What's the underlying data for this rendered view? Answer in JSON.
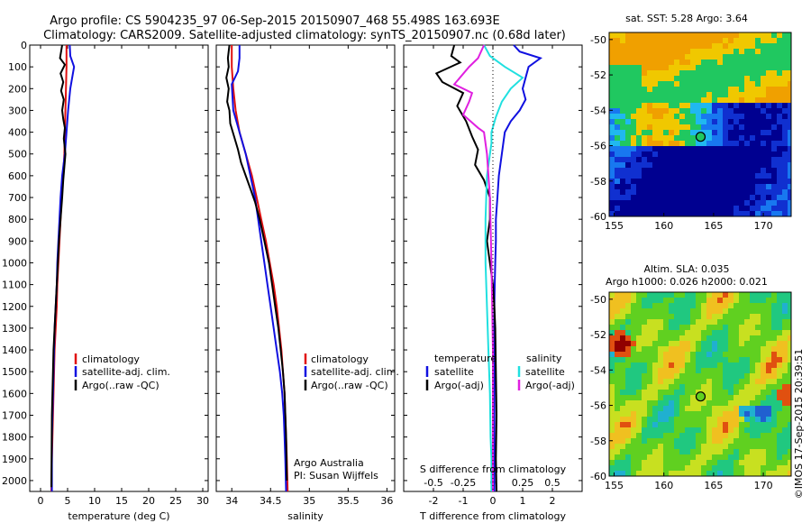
{
  "header": {
    "title_line1": "Argo profile: CS 5904235_97 06-Sep-2015 20150907_468 55.498S 163.693E",
    "title_line2": "Climatology: CARS2009. Satellite-adjusted climatology: synTS_20150907.nc (0.68d later)"
  },
  "colors": {
    "climatology": "#e01010",
    "satellite": "#1010e0",
    "argo": "#000000",
    "sal_satellite": "#20e0e0",
    "sal_argo": "#e020e0"
  },
  "chart_data": [
    {
      "name": "temperature",
      "type": "line",
      "xlabel": "temperature (deg C)",
      "ylabel": "",
      "xlim": [
        -2,
        31
      ],
      "ylim": [
        0,
        2050
      ],
      "y_inverted": true,
      "xticks": [
        0,
        5,
        10,
        15,
        20,
        25,
        30
      ],
      "yticks": [
        0,
        100,
        200,
        300,
        400,
        500,
        600,
        700,
        800,
        900,
        1000,
        1100,
        1200,
        1300,
        1400,
        1500,
        1600,
        1700,
        1800,
        1900,
        2000
      ],
      "legend": [
        "climatology",
        "satellite-adj. clim.",
        "Argo(..raw -QC)"
      ],
      "series": [
        {
          "name": "climatology",
          "color_key": "climatology",
          "x": [
            4.8,
            4.8,
            4.7,
            4.6,
            4.5,
            4.4,
            4.2,
            3.9,
            3.7,
            3.5,
            3.3,
            3.1,
            3.0,
            2.8,
            2.6,
            2.5,
            2.4,
            2.3,
            2.2,
            2.1,
            2.0
          ],
          "y": [
            0,
            100,
            200,
            300,
            400,
            500,
            600,
            700,
            800,
            900,
            1000,
            1100,
            1200,
            1300,
            1400,
            1500,
            1600,
            1700,
            1800,
            1900,
            2050
          ]
        },
        {
          "name": "satellite-adj. clim.",
          "color_key": "satellite",
          "x": [
            5.4,
            5.5,
            6.2,
            5.5,
            5.1,
            4.8,
            4.5,
            4.0,
            3.7,
            3.5,
            3.3,
            3.1,
            3.0,
            2.8,
            2.6,
            2.5,
            2.4,
            2.3,
            2.2,
            2.1,
            2.1
          ],
          "y": [
            0,
            50,
            100,
            200,
            300,
            400,
            500,
            600,
            700,
            800,
            900,
            1000,
            1100,
            1200,
            1300,
            1400,
            1500,
            1600,
            1700,
            1800,
            2050
          ]
        },
        {
          "name": "Argo(..raw -QC)",
          "color_key": "argo",
          "x": [
            4.0,
            3.6,
            4.5,
            3.7,
            4.2,
            3.8,
            4.3,
            4.0,
            4.2,
            4.5,
            4.3,
            4.6,
            4.4,
            4.2,
            4.0,
            3.7,
            3.4,
            3.2,
            3.0,
            2.8,
            2.6,
            2.4,
            2.3,
            2.2,
            2.1,
            2.0
          ],
          "y": [
            0,
            60,
            90,
            130,
            170,
            210,
            250,
            300,
            340,
            380,
            430,
            500,
            560,
            620,
            700,
            800,
            900,
            1000,
            1100,
            1200,
            1300,
            1400,
            1500,
            1600,
            1700,
            2030
          ]
        }
      ]
    },
    {
      "name": "salinity",
      "type": "line",
      "xlabel": "salinity",
      "ylabel": "",
      "xlim": [
        33.8,
        36.1
      ],
      "ylim": [
        0,
        2050
      ],
      "y_inverted": true,
      "xticks": [
        34,
        34.5,
        35,
        35.5,
        36
      ],
      "xtick_labels": [
        "34",
        "34.5",
        "35",
        "35.5",
        "36"
      ],
      "legend": [
        "climatology",
        "satellite-adj. clim.",
        "Argo(..raw -QC)"
      ],
      "annotations": [
        "Argo Australia",
        "PI: Susan Wijffels"
      ],
      "series": [
        {
          "name": "climatology",
          "color_key": "climatology",
          "x": [
            34.0,
            34.0,
            34.02,
            34.05,
            34.1,
            34.18,
            34.26,
            34.32,
            34.38,
            34.44,
            34.49,
            34.54,
            34.58,
            34.61,
            34.64,
            34.66,
            34.68,
            34.69,
            34.7,
            34.71,
            34.72
          ],
          "y": [
            0,
            100,
            200,
            300,
            400,
            500,
            600,
            700,
            800,
            900,
            1000,
            1100,
            1200,
            1300,
            1400,
            1500,
            1600,
            1700,
            1800,
            1900,
            2050
          ]
        },
        {
          "name": "satellite-adj. clim.",
          "color_key": "satellite",
          "x": [
            34.1,
            34.1,
            34.08,
            34.0,
            34.02,
            34.1,
            34.18,
            34.24,
            34.3,
            34.34,
            34.38,
            34.42,
            34.46,
            34.5,
            34.54,
            34.58,
            34.62,
            34.65,
            34.67,
            34.68,
            34.69,
            34.7
          ],
          "y": [
            0,
            60,
            120,
            180,
            300,
            400,
            500,
            600,
            700,
            800,
            900,
            1000,
            1100,
            1200,
            1300,
            1400,
            1500,
            1600,
            1700,
            1800,
            1900,
            2050
          ]
        },
        {
          "name": "Argo(..raw -QC)",
          "color_key": "argo",
          "x": [
            33.97,
            33.95,
            33.96,
            33.93,
            33.96,
            33.94,
            33.97,
            33.98,
            34.03,
            34.08,
            34.12,
            34.18,
            34.24,
            34.3,
            34.36,
            34.42,
            34.48,
            34.52,
            34.56,
            34.6,
            34.63,
            34.66,
            34.68,
            34.7,
            34.71
          ],
          "y": [
            0,
            60,
            100,
            150,
            200,
            260,
            300,
            360,
            420,
            480,
            540,
            600,
            660,
            720,
            800,
            900,
            1000,
            1100,
            1200,
            1300,
            1400,
            1500,
            1600,
            1800,
            2000
          ]
        }
      ]
    },
    {
      "name": "difference",
      "type": "line",
      "xlabel": "T difference from climatology",
      "xlabel_top": "S difference from climatology",
      "xlim": [
        -3,
        3
      ],
      "ylim": [
        0,
        2050
      ],
      "y_inverted": true,
      "xticks": [
        -2,
        -1,
        0,
        1,
        2
      ],
      "s_tick_labels": [
        "-0.5",
        "-0.25",
        "0",
        "0.25",
        "0.5"
      ],
      "legend_left_title": "temperature",
      "legend_right_title": "salinity",
      "legend": [
        "satellite",
        "Argo(-adj)",
        "satellite",
        "Argo(-adj)"
      ],
      "series": [
        {
          "name": "satellite",
          "group": "temperature",
          "color_key": "satellite",
          "x": [
            0.7,
            0.9,
            1.6,
            1.2,
            1.1,
            1.0,
            1.1,
            0.9,
            0.6,
            0.4,
            0.3,
            0.2,
            0.15,
            0.1,
            0.1,
            0.08,
            0.06,
            0.05,
            0.05,
            0.05,
            0.05,
            0.05,
            0.05,
            0.05
          ],
          "y": [
            0,
            30,
            60,
            100,
            150,
            200,
            250,
            300,
            350,
            400,
            500,
            600,
            700,
            800,
            900,
            1000,
            1100,
            1200,
            1300,
            1400,
            1500,
            1700,
            1900,
            2050
          ]
        },
        {
          "name": "Argo(-adj)",
          "group": "temperature",
          "color_key": "argo",
          "x": [
            -1.3,
            -1.4,
            -1.1,
            -1.9,
            -1.7,
            -1.0,
            -1.2,
            -0.9,
            -0.7,
            -0.5,
            -0.6,
            -0.3,
            -0.1,
            -0.1,
            -0.2,
            -0.1,
            0.0,
            0.05,
            0.08,
            0.1,
            0.12,
            0.1,
            0.12
          ],
          "y": [
            0,
            50,
            80,
            130,
            170,
            220,
            280,
            350,
            420,
            480,
            550,
            620,
            700,
            800,
            900,
            1000,
            1100,
            1200,
            1300,
            1500,
            1700,
            1900,
            2050
          ]
        },
        {
          "name": "satellite",
          "group": "salinity",
          "color_key": "sal_satellite",
          "x": [
            -0.3,
            -0.1,
            0.4,
            1.0,
            0.6,
            0.3,
            0.1,
            -0.05,
            -0.05,
            -0.2,
            -0.25,
            -0.25,
            -0.2,
            -0.15,
            -0.1,
            -0.08,
            -0.05,
            -0.05,
            -0.05
          ],
          "y": [
            0,
            50,
            100,
            150,
            200,
            260,
            330,
            400,
            450,
            600,
            800,
            1000,
            1200,
            1400,
            1600,
            1800,
            1900,
            2000,
            2050
          ]
        },
        {
          "name": "Argo(-adj)",
          "group": "salinity",
          "color_key": "sal_argo",
          "x": [
            -0.3,
            -0.5,
            -0.8,
            -1.3,
            -0.7,
            -0.8,
            -1.0,
            -0.5,
            -0.3,
            -0.2,
            -0.1,
            -0.05,
            0.0,
            0.0,
            0.0
          ],
          "y": [
            0,
            60,
            100,
            180,
            220,
            260,
            320,
            380,
            400,
            500,
            700,
            1000,
            1400,
            1800,
            2050
          ]
        }
      ]
    },
    {
      "name": "sat-sst-map",
      "type": "heatmap",
      "title": "sat. SST: 5.28 Argo: 3.64",
      "xticks": [
        155,
        160,
        165,
        170
      ],
      "yticks": [
        -50,
        -52,
        -54,
        -56,
        -58,
        -60
      ],
      "xlim": [
        154.5,
        172.8
      ],
      "ylim": [
        -60,
        -49.6
      ],
      "marker": {
        "lon": 163.693,
        "lat": -55.498
      }
    },
    {
      "name": "altim-sla-map",
      "type": "heatmap",
      "title_line1": "Altim. SLA: 0.035",
      "title_line2": "Argo h1000: 0.026 h2000: 0.021",
      "xticks": [
        155,
        160,
        165,
        170
      ],
      "yticks": [
        -50,
        -52,
        -54,
        -56,
        -58,
        -60
      ],
      "xlim": [
        154.5,
        172.8
      ],
      "ylim": [
        -60,
        -49.6
      ],
      "marker": {
        "lon": 163.693,
        "lat": -55.498
      }
    }
  ],
  "side_text": "©IMOS 17-Sep-2015 20:39:51"
}
